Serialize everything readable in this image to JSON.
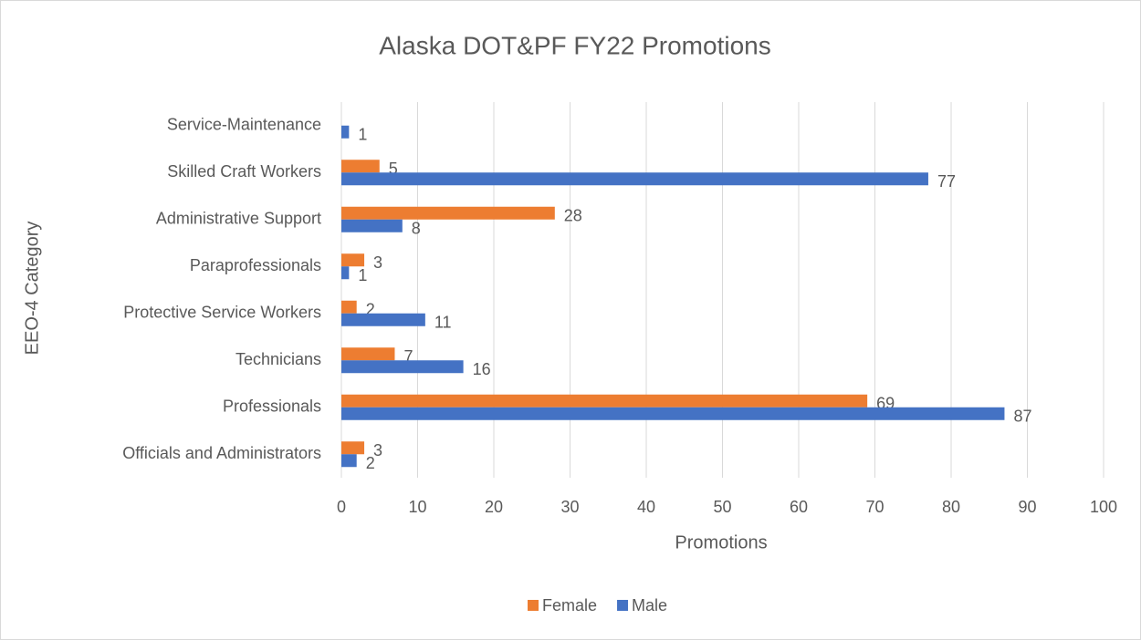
{
  "chart_data": {
    "type": "bar",
    "orientation": "horizontal",
    "title": "Alaska DOT&PF FY22 Promotions",
    "x_label": "Promotions",
    "y_label": "EEO-4 Category",
    "categories": [
      "Officials and Administrators",
      "Professionals",
      "Technicians",
      "Protective Service Workers",
      "Paraprofessionals",
      "Administrative Support",
      "Skilled Craft Workers",
      "Service-Maintenance"
    ],
    "series": [
      {
        "name": "Female",
        "color": "#ed7d31",
        "values": [
          3,
          69,
          7,
          2,
          3,
          28,
          5,
          null
        ]
      },
      {
        "name": "Male",
        "color": "#4472c4",
        "values": [
          2,
          87,
          16,
          11,
          1,
          8,
          77,
          1
        ]
      }
    ],
    "xlim": [
      0,
      100
    ],
    "xticks": [
      0,
      10,
      20,
      30,
      40,
      50,
      60,
      70,
      80,
      90,
      100
    ],
    "grid": true,
    "legend": "bottom",
    "data_labels": true
  }
}
